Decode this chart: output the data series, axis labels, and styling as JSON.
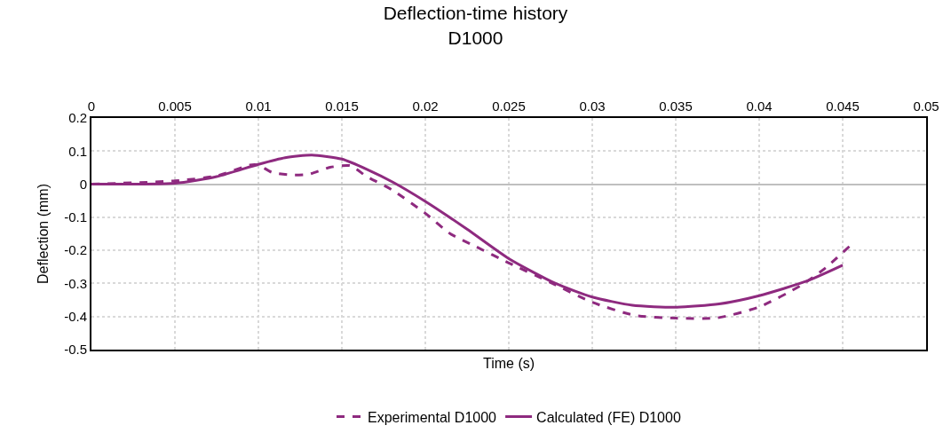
{
  "chart_data": {
    "type": "line",
    "title": "Deflection-time history\nD1000",
    "xlabel": "Time (s)",
    "ylabel": "Deflection (mm)",
    "xlim": [
      0,
      0.05
    ],
    "xticks": [
      0,
      0.005,
      0.01,
      0.015,
      0.02,
      0.025,
      0.03,
      0.035,
      0.04,
      0.045,
      0.05
    ],
    "ylim": [
      -0.5,
      0.2
    ],
    "yticks": [
      -0.5,
      -0.4,
      -0.3,
      -0.2,
      -0.1,
      0,
      0.1,
      0.2
    ],
    "grid": true,
    "legend": "bottom",
    "marker": "none",
    "series": [
      {
        "name": "Experimental D1000",
        "color": "#8e2a7f",
        "line_style": "dashed",
        "x": [
          0,
          0.005,
          0.0075,
          0.0095,
          0.01,
          0.0108,
          0.012,
          0.013,
          0.0143,
          0.0155,
          0.0165,
          0.018,
          0.02,
          0.0215,
          0.023,
          0.025,
          0.0275,
          0.03,
          0.0325,
          0.035,
          0.0375,
          0.04,
          0.0425,
          0.044,
          0.0454
        ],
        "values": [
          0,
          0.01,
          0.025,
          0.058,
          0.058,
          0.036,
          0.028,
          0.03,
          0.051,
          0.056,
          0.023,
          -0.017,
          -0.088,
          -0.15,
          -0.188,
          -0.238,
          -0.297,
          -0.357,
          -0.396,
          -0.405,
          -0.404,
          -0.371,
          -0.306,
          -0.252,
          -0.188
        ]
      },
      {
        "name": "Calculated (FE) D1000",
        "color": "#8e2a7f",
        "line_style": "solid",
        "x": [
          0,
          0.005,
          0.0075,
          0.01,
          0.0116,
          0.0132,
          0.015,
          0.0165,
          0.0181,
          0.02,
          0.0225,
          0.025,
          0.0278,
          0.03,
          0.0324,
          0.035,
          0.0376,
          0.04,
          0.0429,
          0.045
        ],
        "values": [
          0,
          0.003,
          0.023,
          0.06,
          0.08,
          0.088,
          0.076,
          0.045,
          0.005,
          -0.052,
          -0.136,
          -0.225,
          -0.3,
          -0.341,
          -0.366,
          -0.372,
          -0.362,
          -0.337,
          -0.292,
          -0.245
        ]
      }
    ]
  }
}
